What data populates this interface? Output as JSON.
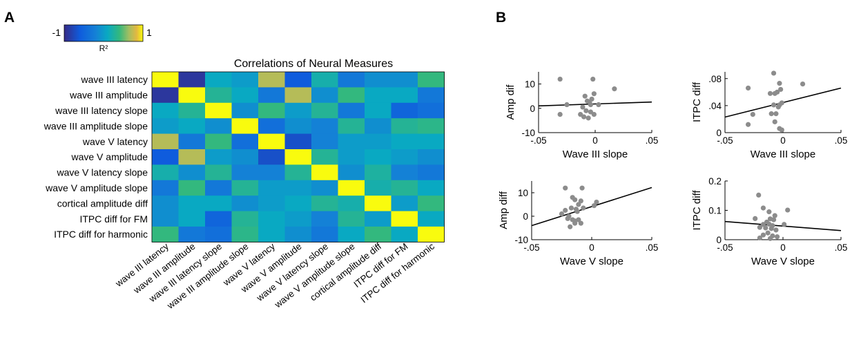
{
  "panels": {
    "a": "A",
    "b": "B"
  },
  "colorbar": {
    "min_label": "-1",
    "max_label": "1",
    "label": "R²",
    "colormap": "parula"
  },
  "chart_data": [
    {
      "type": "heatmap",
      "title": "Correlations of Neural Measures",
      "row_labels": [
        "wave III latency",
        "wave III amplitude",
        "wave III latency slope",
        "wave III amplitude slope",
        "wave V latency",
        "wave V amplitude",
        "wave V latency slope",
        "wave V amplitude slope",
        "cortical amplitude diff",
        "ITPC diff for FM",
        "ITPC diff for harmonic"
      ],
      "col_labels": [
        "wave III latency",
        "wave III amplitude",
        "wave III latency slope",
        "wave III amplitude slope",
        "wave V latency",
        "wave V amplitude",
        "wave V latency slope",
        "wave V amplitude slope",
        "cortical amplitude diff",
        "ITPC diff for FM",
        "ITPC diff for harmonic"
      ],
      "range": [
        -1,
        1
      ],
      "values": [
        [
          1.0,
          -0.9,
          0.1,
          0.0,
          0.7,
          -0.6,
          0.2,
          -0.3,
          -0.1,
          -0.1,
          0.4
        ],
        [
          -0.9,
          1.0,
          0.3,
          0.1,
          -0.3,
          0.7,
          -0.1,
          0.4,
          0.1,
          0.1,
          -0.3
        ],
        [
          0.1,
          0.3,
          1.0,
          -0.1,
          0.4,
          0.0,
          0.3,
          -0.3,
          0.1,
          -0.5,
          -0.4
        ],
        [
          0.0,
          0.1,
          -0.1,
          1.0,
          -0.4,
          -0.1,
          -0.2,
          0.3,
          -0.1,
          0.3,
          0.35
        ],
        [
          0.7,
          -0.3,
          0.4,
          -0.4,
          1.0,
          -0.7,
          -0.2,
          0.0,
          0.0,
          0.1,
          0.1
        ],
        [
          -0.6,
          0.7,
          0.0,
          -0.1,
          -0.7,
          1.0,
          0.3,
          0.0,
          0.1,
          0.0,
          -0.1
        ],
        [
          0.2,
          -0.1,
          0.3,
          -0.2,
          -0.2,
          0.3,
          1.0,
          -0.1,
          0.25,
          -0.2,
          -0.3
        ],
        [
          -0.3,
          0.4,
          -0.3,
          0.3,
          0.0,
          0.0,
          -0.1,
          1.0,
          0.2,
          0.3,
          0.1
        ],
        [
          -0.1,
          0.1,
          0.1,
          -0.1,
          0.0,
          0.1,
          0.3,
          0.2,
          1.0,
          0.0,
          0.4
        ],
        [
          -0.1,
          0.1,
          -0.5,
          0.3,
          0.1,
          0.0,
          -0.2,
          0.3,
          0.0,
          1.0,
          0.1
        ],
        [
          0.4,
          -0.3,
          -0.4,
          0.35,
          0.1,
          -0.1,
          -0.3,
          0.1,
          0.4,
          0.1,
          1.0
        ]
      ]
    },
    {
      "type": "scatter",
      "xlabel": "Wave III slope",
      "ylabel": "Amp dif",
      "xlim": [
        -0.05,
        0.05
      ],
      "ylim": [
        -10,
        15
      ],
      "xticks": [
        -0.05,
        0,
        0.05
      ],
      "xtick_labels": [
        "-.05",
        "0",
        ".05"
      ],
      "yticks": [
        -10,
        0,
        10
      ],
      "ytick_labels": [
        "-10",
        "0",
        "10"
      ],
      "points": [
        [
          -0.031,
          12
        ],
        [
          -0.031,
          -2.5
        ],
        [
          -0.025,
          1.5
        ],
        [
          -0.002,
          12
        ],
        [
          -0.001,
          6
        ],
        [
          -0.003,
          3.8
        ],
        [
          -0.005,
          2.5
        ],
        [
          -0.009,
          5
        ],
        [
          -0.007,
          3
        ],
        [
          -0.004,
          1.5
        ],
        [
          -0.011,
          0.5
        ],
        [
          -0.008,
          -1
        ],
        [
          -0.004,
          -1.5
        ],
        [
          -0.013,
          -2.5
        ],
        [
          -0.01,
          -3.5
        ],
        [
          -0.006,
          -4
        ],
        [
          -0.001,
          -2.5
        ],
        [
          0.003,
          1.5
        ],
        [
          0.017,
          8
        ]
      ],
      "fit_line": {
        "x": [
          -0.05,
          0.05
        ],
        "y": [
          1.0,
          2.6
        ]
      }
    },
    {
      "type": "scatter",
      "xlabel": "Wave III slope",
      "ylabel": "ITPC diff",
      "xlim": [
        -0.05,
        0.05
      ],
      "ylim": [
        0,
        0.09
      ],
      "xticks": [
        -0.05,
        0,
        0.05
      ],
      "xtick_labels": [
        "-.05",
        "0",
        ".05"
      ],
      "yticks": [
        0,
        0.04,
        0.08
      ],
      "ytick_labels": [
        "0",
        ".04",
        ".08"
      ],
      "points": [
        [
          -0.03,
          0.066
        ],
        [
          -0.026,
          0.027
        ],
        [
          -0.03,
          0.012
        ],
        [
          -0.008,
          0.088
        ],
        [
          -0.011,
          0.058
        ],
        [
          -0.007,
          0.058
        ],
        [
          -0.003,
          0.073
        ],
        [
          -0.005,
          0.06
        ],
        [
          -0.002,
          0.064
        ],
        [
          -0.001,
          0.044
        ],
        [
          -0.003,
          0.041
        ],
        [
          -0.004,
          0.038
        ],
        [
          -0.008,
          0.041
        ],
        [
          -0.006,
          0.028
        ],
        [
          -0.01,
          0.028
        ],
        [
          -0.007,
          0.016
        ],
        [
          -0.003,
          0.006
        ],
        [
          -0.001,
          0.004
        ],
        [
          0.017,
          0.072
        ]
      ],
      "fit_line": {
        "x": [
          -0.05,
          0.05
        ],
        "y": [
          0.023,
          0.066
        ]
      }
    },
    {
      "type": "scatter",
      "xlabel": "Wave V slope",
      "ylabel": "Amp diff",
      "xlim": [
        -0.05,
        0.05
      ],
      "ylim": [
        -10,
        15
      ],
      "xticks": [
        -0.05,
        0,
        0.05
      ],
      "xtick_labels": [
        "-.05",
        "0",
        ".05"
      ],
      "yticks": [
        -10,
        0,
        10
      ],
      "ytick_labels": [
        "-10",
        "0",
        "10"
      ],
      "points": [
        [
          -0.022,
          12
        ],
        [
          -0.008,
          12
        ],
        [
          -0.016,
          8
        ],
        [
          -0.014,
          7
        ],
        [
          -0.009,
          6.5
        ],
        [
          -0.011,
          5
        ],
        [
          0.004,
          6
        ],
        [
          -0.017,
          3.5
        ],
        [
          -0.013,
          3
        ],
        [
          -0.007,
          3.5
        ],
        [
          -0.012,
          2
        ],
        [
          -0.022,
          2.5
        ],
        [
          -0.025,
          1
        ],
        [
          -0.019,
          0
        ],
        [
          -0.02,
          -1
        ],
        [
          -0.016,
          -1.5
        ],
        [
          -0.014,
          -2
        ],
        [
          -0.011,
          -1.5
        ],
        [
          -0.014,
          -3
        ],
        [
          -0.018,
          -4.5
        ],
        [
          -0.009,
          -3
        ],
        [
          0.002,
          4.5
        ]
      ],
      "fit_line": {
        "x": [
          -0.05,
          0.05
        ],
        "y": [
          -4.0,
          12.2
        ]
      }
    },
    {
      "type": "scatter",
      "xlabel": "Wave V slope",
      "ylabel": "ITPC diff",
      "xlim": [
        -0.05,
        0.05
      ],
      "ylim": [
        0,
        0.2
      ],
      "xticks": [
        -0.05,
        0,
        0.05
      ],
      "xtick_labels": [
        "-.05",
        "0",
        ".05"
      ],
      "yticks": [
        0,
        0.1,
        0.2
      ],
      "ytick_labels": [
        "0",
        "0.1",
        "0.2"
      ],
      "points": [
        [
          -0.021,
          0.152
        ],
        [
          -0.017,
          0.108
        ],
        [
          -0.012,
          0.095
        ],
        [
          0.004,
          0.101
        ],
        [
          -0.024,
          0.072
        ],
        [
          -0.011,
          0.071
        ],
        [
          -0.007,
          0.082
        ],
        [
          -0.008,
          0.068
        ],
        [
          -0.014,
          0.06
        ],
        [
          -0.012,
          0.053
        ],
        [
          -0.017,
          0.052
        ],
        [
          -0.009,
          0.048
        ],
        [
          0.001,
          0.052
        ],
        [
          -0.02,
          0.042
        ],
        [
          -0.015,
          0.04
        ],
        [
          -0.01,
          0.038
        ],
        [
          -0.006,
          0.033
        ],
        [
          -0.013,
          0.023
        ],
        [
          -0.017,
          0.016
        ],
        [
          -0.009,
          0.013
        ],
        [
          -0.005,
          0.01
        ],
        [
          -0.02,
          0.006
        ],
        [
          -0.011,
          0.004
        ]
      ],
      "fit_line": {
        "x": [
          -0.05,
          0.05
        ],
        "y": [
          0.062,
          0.031
        ]
      }
    }
  ]
}
